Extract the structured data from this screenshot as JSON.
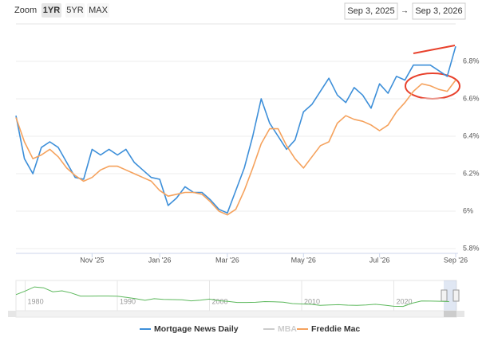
{
  "zoom": {
    "label": "Zoom",
    "buttons": [
      "1YR",
      "5YR",
      "MAX"
    ],
    "selected": 0
  },
  "date_range": {
    "from": "Sep 3, 2025",
    "separator": "→",
    "to": "Sep 3, 2026"
  },
  "chart_data": {
    "type": "line",
    "categories": [
      null,
      null,
      null,
      null,
      null,
      null,
      null,
      null,
      null,
      "Nov '25",
      null,
      null,
      null,
      null,
      null,
      null,
      null,
      "Jan '26",
      null,
      null,
      null,
      null,
      null,
      null,
      null,
      "Mar '26",
      null,
      null,
      null,
      null,
      null,
      null,
      null,
      null,
      "May '26",
      null,
      null,
      null,
      null,
      null,
      null,
      null,
      null,
      "Jul '26",
      null,
      null,
      null,
      null,
      null,
      null,
      null,
      null,
      "Sep '26"
    ],
    "series": [
      {
        "name": "Mortgage News Daily",
        "color": "#3d8fd9",
        "visible": true,
        "values": [
          6.51,
          6.28,
          6.2,
          6.34,
          6.37,
          6.34,
          6.26,
          6.18,
          6.17,
          6.33,
          6.3,
          6.33,
          6.3,
          6.33,
          6.26,
          6.22,
          6.18,
          6.17,
          6.03,
          6.07,
          6.13,
          6.1,
          6.1,
          6.06,
          6.01,
          5.99,
          6.11,
          6.23,
          6.4,
          6.6,
          6.47,
          6.4,
          6.33,
          6.38,
          6.53,
          6.57,
          6.64,
          6.71,
          6.62,
          6.58,
          6.66,
          6.62,
          6.55,
          6.68,
          6.63,
          6.72,
          6.7,
          6.78,
          6.78,
          6.78,
          6.75,
          6.72,
          6.88
        ]
      },
      {
        "name": "MBA",
        "color": "#cccccc",
        "visible": false,
        "values": [
          null,
          null,
          null,
          null,
          null,
          null,
          null,
          null,
          null,
          null,
          null,
          null,
          null,
          null,
          null,
          null,
          null,
          null,
          null,
          null,
          null,
          null,
          null,
          null,
          null,
          null,
          null,
          null,
          null,
          null,
          null,
          null,
          null,
          null,
          null,
          null,
          null,
          null,
          null,
          null,
          null,
          null,
          null,
          null,
          null,
          null,
          null,
          null,
          null,
          null,
          null,
          null,
          null
        ]
      },
      {
        "name": "Freddie Mac",
        "color": "#f5a25d",
        "visible": true,
        "values": [
          6.5,
          6.37,
          6.28,
          6.3,
          6.33,
          6.29,
          6.23,
          6.19,
          6.16,
          6.18,
          6.22,
          6.24,
          6.24,
          6.22,
          6.2,
          6.18,
          6.16,
          6.11,
          6.08,
          6.09,
          6.1,
          6.1,
          6.09,
          6.05,
          6.0,
          5.98,
          6.01,
          6.11,
          6.23,
          6.36,
          6.44,
          6.44,
          6.35,
          6.28,
          6.23,
          6.29,
          6.35,
          6.37,
          6.47,
          6.51,
          6.49,
          6.48,
          6.46,
          6.43,
          6.46,
          6.53,
          6.58,
          6.64,
          6.68,
          6.67,
          6.65,
          6.64,
          6.7
        ]
      }
    ],
    "ylim": [
      5.8,
      7.0
    ],
    "yticks": [
      {
        "value": 5.8,
        "label": "5.8%"
      },
      {
        "value": 6.0,
        "label": "6%"
      },
      {
        "value": 6.2,
        "label": "6.2%"
      },
      {
        "value": 6.4,
        "label": "6.4%"
      },
      {
        "value": 6.6,
        "label": "6.6%"
      },
      {
        "value": 6.8,
        "label": "6.8%"
      }
    ],
    "grid": true
  },
  "navigator": {
    "color": "#5cb85c",
    "x": [
      1979,
      1980,
      1981,
      1982,
      1983,
      1984,
      1985,
      1986,
      1987,
      1988,
      1989,
      1990,
      1991,
      1992,
      1993,
      1994,
      1995,
      1996,
      1997,
      1998,
      1999,
      2000,
      2001,
      2002,
      2003,
      2004,
      2005,
      2006,
      2007,
      2008,
      2009,
      2010,
      2011,
      2012,
      2013,
      2014,
      2015,
      2016,
      2017,
      2018,
      2019,
      2020,
      2021,
      2022,
      2023,
      2024,
      2025,
      2026
    ],
    "values": [
      11.2,
      13.7,
      16.6,
      16.0,
      13.2,
      13.9,
      12.4,
      10.2,
      10.2,
      10.3,
      10.3,
      10.1,
      9.3,
      8.4,
      7.3,
      8.4,
      7.9,
      7.8,
      7.6,
      6.9,
      7.4,
      8.1,
      7.0,
      6.5,
      5.8,
      5.8,
      5.9,
      6.4,
      6.3,
      6.0,
      5.0,
      4.7,
      4.5,
      3.7,
      4.0,
      4.2,
      3.9,
      3.7,
      4.0,
      4.5,
      3.9,
      3.1,
      3.0,
      5.3,
      6.8,
      6.7,
      6.6,
      6.4
    ],
    "xlim": [
      1979,
      2026.8
    ],
    "ylim": [
      0,
      20
    ],
    "xticks": [
      1980,
      1990,
      2000,
      2010,
      2020
    ]
  }
}
